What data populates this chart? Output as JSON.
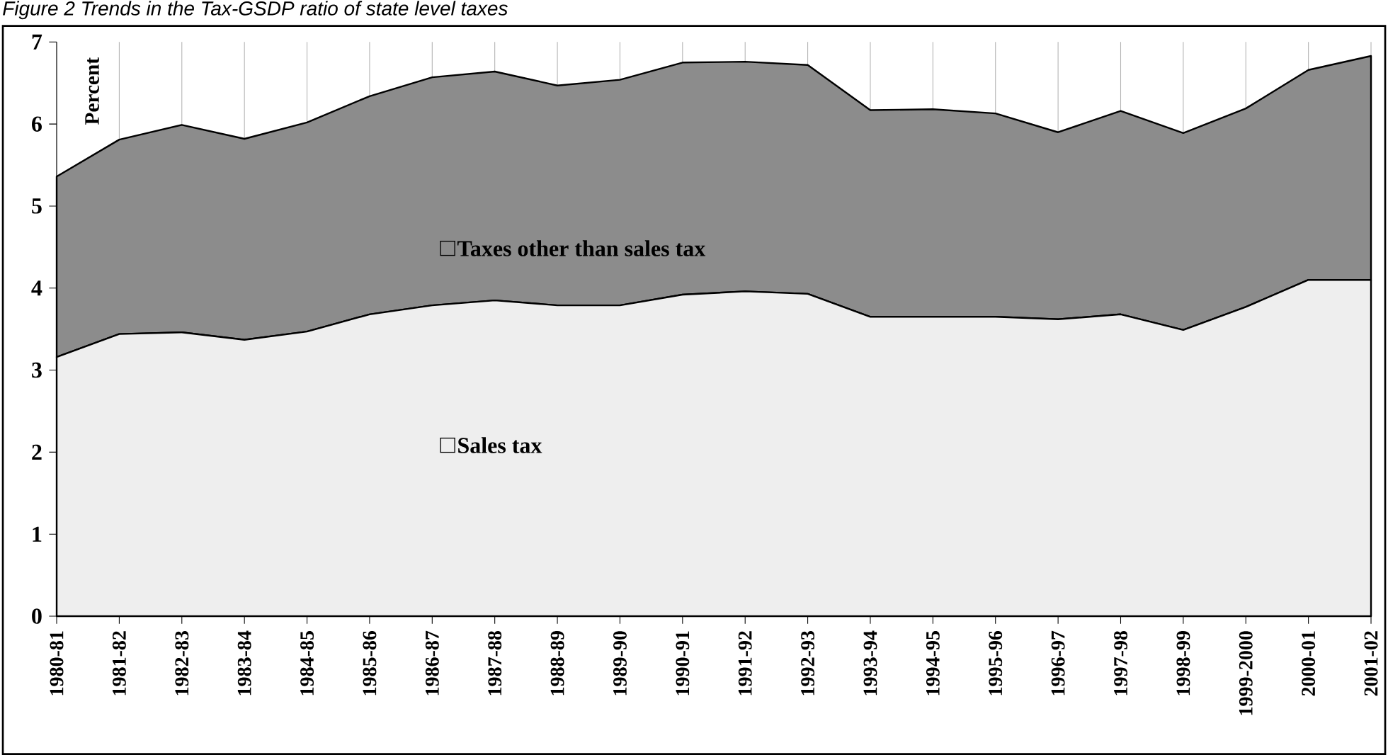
{
  "chart_data": {
    "type": "area",
    "title": "Figure 2 Trends in the Tax-GSDP ratio of state level taxes",
    "ylabel": "Percent",
    "stacked": true,
    "categories": [
      "1980-81",
      "1981-82",
      "1982-83",
      "1983-84",
      "1984-85",
      "1985-86",
      "1986-87",
      "1987-88",
      "1988-89",
      "1989-90",
      "1990-91",
      "1991-92",
      "1992-93",
      "1993-94",
      "1994-95",
      "1995-96",
      "1996-97",
      "1997-98",
      "1998-99",
      "1999-2000",
      "2000-01",
      "2001-02"
    ],
    "series": [
      {
        "name": "Sales tax",
        "color": "#eeeeee",
        "values": [
          3.16,
          3.44,
          3.46,
          3.37,
          3.47,
          3.68,
          3.79,
          3.85,
          3.79,
          3.79,
          3.92,
          3.96,
          3.93,
          3.65,
          3.65,
          3.65,
          3.62,
          3.68,
          3.49,
          3.77,
          4.1,
          4.1
        ]
      },
      {
        "name": "Taxes other than sales tax",
        "color": "#8c8c8c",
        "values": [
          2.2,
          2.37,
          2.53,
          2.45,
          2.55,
          2.66,
          2.78,
          2.79,
          2.68,
          2.75,
          2.83,
          2.8,
          2.79,
          2.52,
          2.53,
          2.48,
          2.28,
          2.48,
          2.4,
          2.42,
          2.56,
          2.73
        ]
      }
    ],
    "ylim": [
      0,
      7
    ],
    "yticks": [
      0,
      1,
      2,
      3,
      4,
      5,
      6,
      7
    ],
    "grid": "x",
    "legend": "center"
  }
}
